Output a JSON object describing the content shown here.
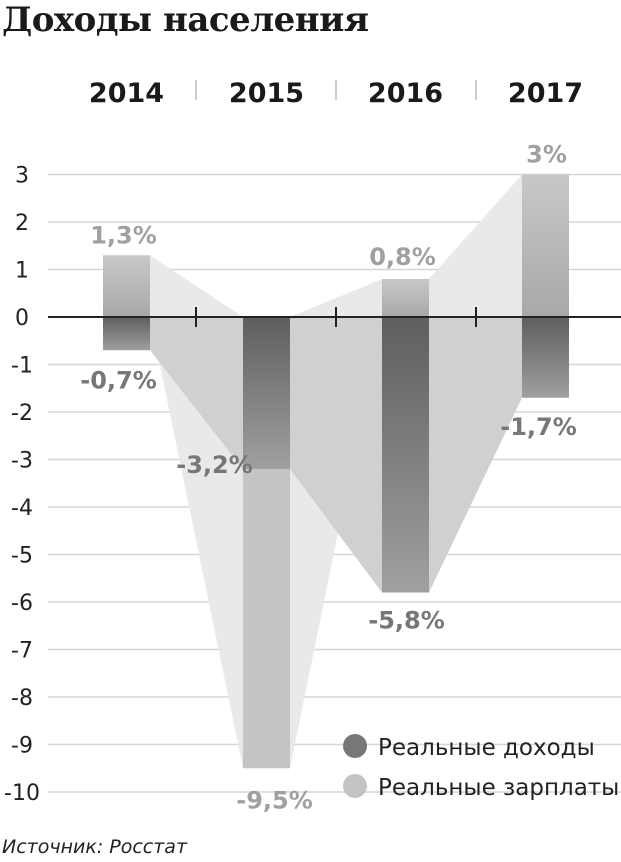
{
  "title": "Доходы населения",
  "source": "Источник: Росстат",
  "chart_data": {
    "type": "bar",
    "categories": [
      "2014",
      "2015",
      "2016",
      "2017"
    ],
    "series": [
      {
        "name": "Реальные доходы",
        "values": [
          -0.7,
          -3.2,
          -5.8,
          -1.7
        ],
        "labels": [
          "-0,7%",
          "-3,2%",
          "-5,8%",
          "-1,7%"
        ],
        "color": "#777777"
      },
      {
        "name": "Реальные зарплаты",
        "values": [
          1.3,
          -9.5,
          0.8,
          3
        ],
        "labels": [
          "1,3%",
          "-9,5%",
          "0,8%",
          "3%"
        ],
        "color": "#c4c4c4"
      }
    ],
    "ylim": [
      -10,
      3
    ],
    "yticks": [
      "3",
      "2",
      "1",
      "0",
      "-1",
      "-2",
      "-3",
      "-4",
      "-5",
      "-6",
      "-7",
      "-8",
      "-9",
      "-10"
    ],
    "grid": true,
    "legend": "bottom-right",
    "xaxis_position": "top"
  }
}
